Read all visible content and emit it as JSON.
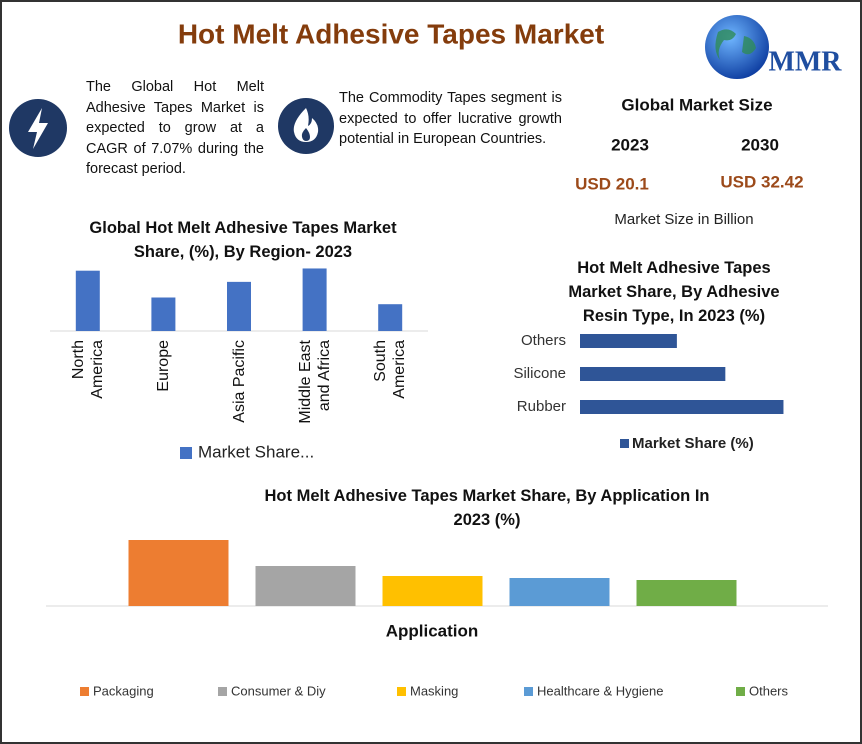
{
  "header": {
    "title": "Hot Melt Adhesive Tapes Market",
    "logo": "MMR"
  },
  "highlights": [
    "The Global Hot Melt Adhesive Tapes Market is expected to grow at a CAGR of 7.07% during the forecast period.",
    "The Commodity Tapes segment is expected to offer lucrative growth potential in European Countries."
  ],
  "market_size": {
    "title": "Global Market Size",
    "years": [
      "2023",
      "2030"
    ],
    "values": [
      "USD 20.1",
      "USD 32.42"
    ],
    "note": "Market Size in Billion"
  },
  "chart_data": [
    {
      "type": "bar",
      "orientation": "vertical",
      "title": "Global Hot Melt Adhesive Tapes Market Share, (%), By Region- 2023",
      "categories": [
        "North America",
        "Europe",
        "Asia Pacific",
        "Middle East and Africa",
        "South America"
      ],
      "series": [
        {
          "name": "Market Share...",
          "color": "#4472c4",
          "values": [
            27,
            15,
            22,
            28,
            12
          ]
        }
      ],
      "ylim": [
        0,
        30
      ]
    },
    {
      "type": "bar",
      "orientation": "horizontal",
      "title": "Hot Melt Adhesive Tapes Market Share, By Adhesive Resin Type, In 2023 (%)",
      "categories": [
        "Others",
        "Silicone",
        "Rubber"
      ],
      "series": [
        {
          "name": "Market Share (%)",
          "color": "#2f5597",
          "values": [
            20,
            30,
            42
          ]
        }
      ],
      "xlim": [
        0,
        45
      ]
    },
    {
      "type": "bar",
      "orientation": "vertical",
      "title": "Hot Melt Adhesive Tapes Market  Share, By Application In 2023 (%)",
      "xlabel": "Application",
      "categories": [
        "Packaging",
        "Consumer & Diy",
        "Masking",
        "Healthcare & Hygiene",
        "Others"
      ],
      "colors": [
        "#ed7d31",
        "#a5a5a5",
        "#ffc000",
        "#5b9bd5",
        "#70ad47"
      ],
      "values": [
        33,
        20,
        15,
        14,
        13
      ],
      "ylim": [
        0,
        35
      ]
    }
  ]
}
